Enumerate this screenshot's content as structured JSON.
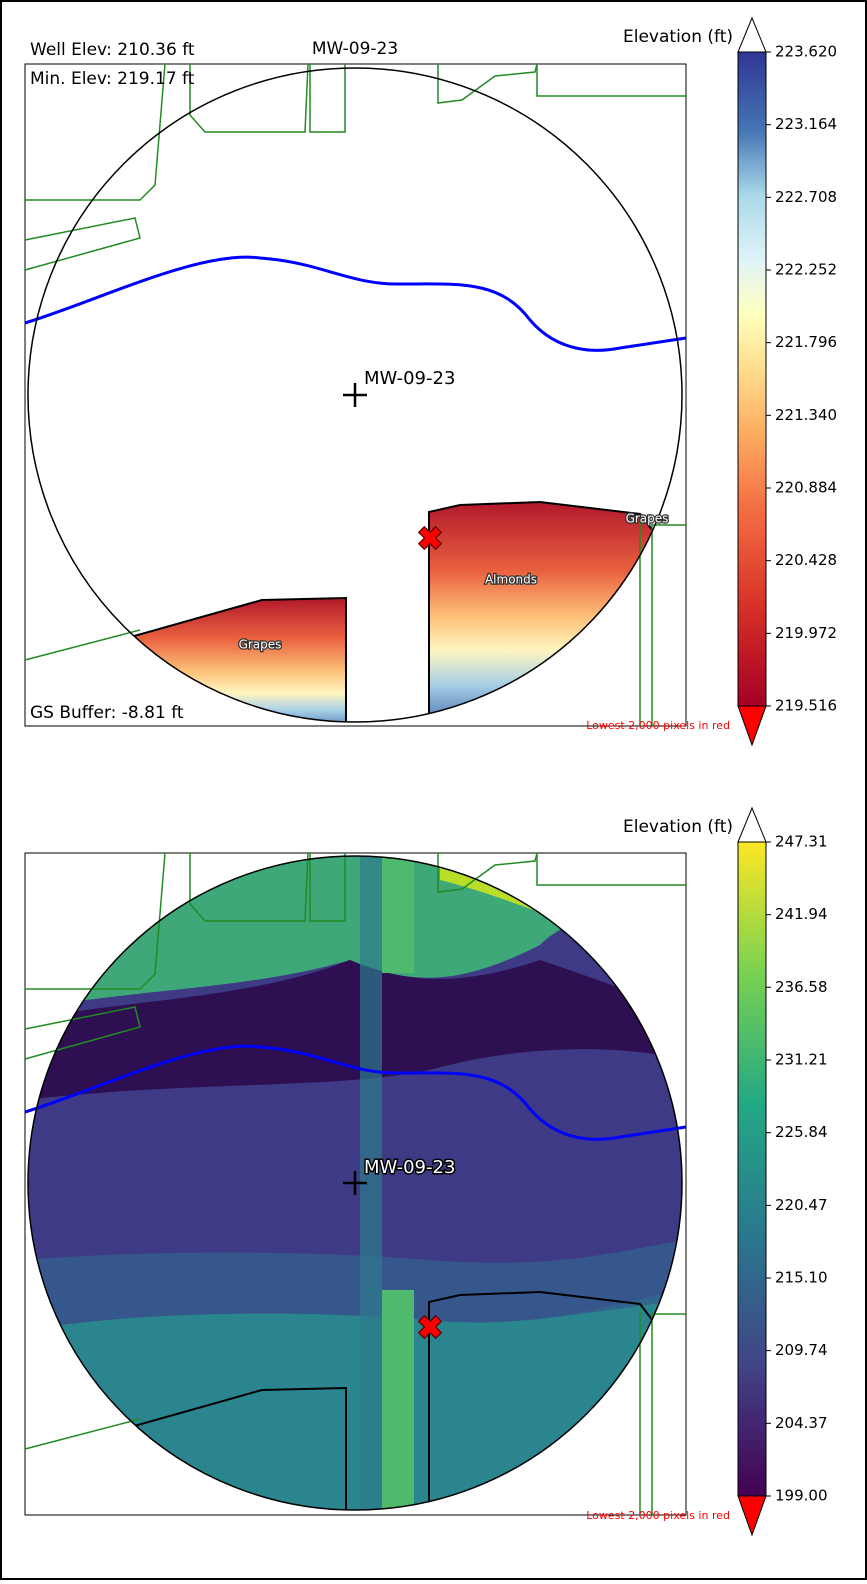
{
  "panels": [
    {
      "title": "MW-09-23",
      "annotations": [
        "Well Elev: 210.36 ft",
        "Min. Elev: 219.17 ft",
        "GS Buffer: -8.81 ft"
      ],
      "well_label": "MW-09-23",
      "field_labels": [
        "Grapes",
        "Almonds",
        "Grapes"
      ],
      "colorbar": {
        "label": "Elevation (ft)",
        "lim": [
          219.516,
          223.62
        ],
        "ticks": [
          219.516,
          219.972,
          220.428,
          220.884,
          {
            "value": 221.34,
            "label": "221.340"
          },
          221.796,
          222.252,
          222.708,
          223.164,
          {
            "value": 223.62,
            "label": "223.620"
          }
        ],
        "note": "Lowest 2,000 pixels in red"
      }
    },
    {
      "well_label": "MW-09-23",
      "colorbar": {
        "label": "Elevation (ft)",
        "lim": [
          199,
          247.31
        ],
        "ticks": [
          {
            "value": 199,
            "label": "199.00"
          },
          204.37,
          209.74,
          {
            "value": 215.1,
            "label": "215.10"
          },
          220.47,
          225.84,
          231.21,
          236.58,
          241.94,
          247.31
        ],
        "note": "Lowest 2,000 pixels in red"
      }
    }
  ]
}
